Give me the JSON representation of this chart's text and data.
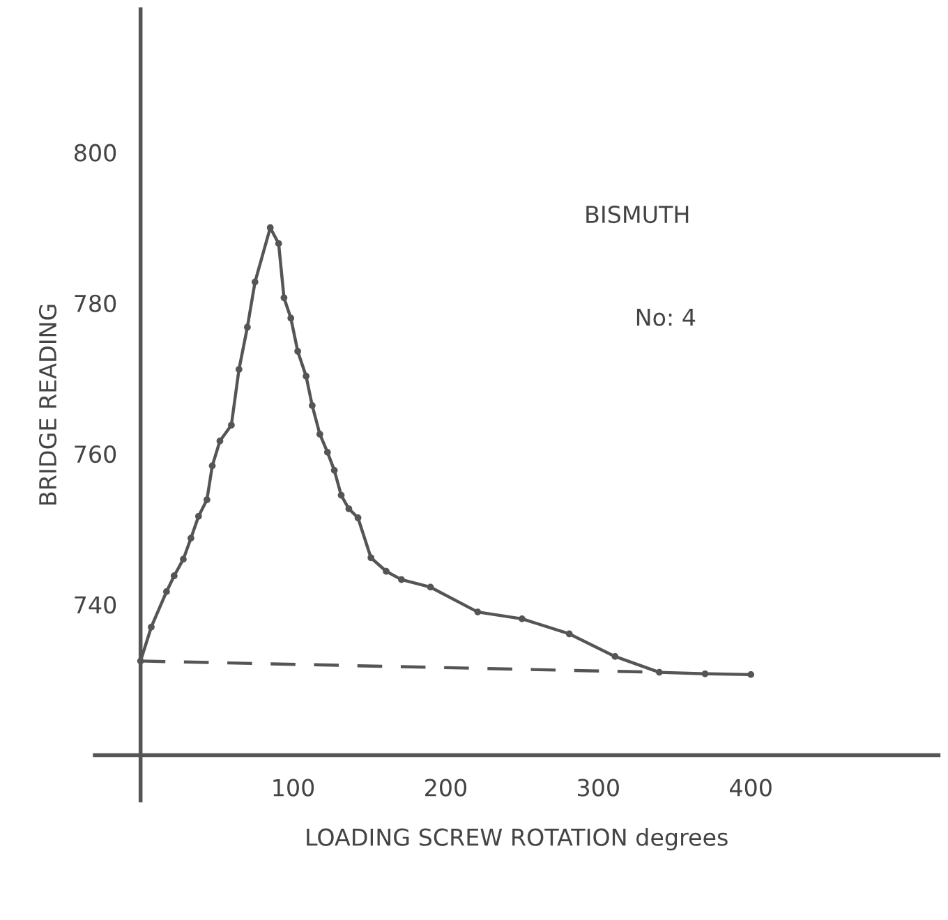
{
  "chart_data": {
    "type": "line",
    "xlabel": "LOADING SCREW ROTATION degrees",
    "ylabel": "BRIDGE READING",
    "annotations": [
      "BISMUTH",
      "No: 4"
    ],
    "xlim": [
      -30,
      523
    ],
    "ylim": [
      714,
      819
    ],
    "xticks": [
      100,
      200,
      300,
      400
    ],
    "yticks": [
      740,
      760,
      780,
      800
    ],
    "marker": "circle",
    "line_style": "solid",
    "grid": false,
    "legend": false,
    "series": [
      {
        "color": "#555555",
        "x": [
          0,
          7,
          17,
          22,
          28,
          33,
          38,
          43.5,
          47,
          52,
          59.5,
          64.5,
          70,
          75,
          85,
          90.5,
          94,
          98.5,
          103,
          108.5,
          112.5,
          117.5,
          122.5,
          127,
          131.5,
          136.5,
          142.5,
          151,
          161,
          171,
          190,
          221,
          250,
          281,
          311,
          340,
          370,
          400
        ],
        "values": [
          732.5,
          737,
          741.7,
          743.8,
          746,
          748.8,
          751.7,
          753.9,
          758.4,
          761.7,
          763.8,
          771.2,
          776.8,
          782.8,
          790,
          787.9,
          780.7,
          778,
          773.6,
          770.3,
          766.4,
          762.6,
          760.2,
          757.8,
          754.5,
          752.7,
          751.5,
          746.2,
          744.4,
          743.3,
          742.3,
          739,
          738.1,
          736.1,
          733.1,
          731,
          730.8,
          730.7
        ]
      },
      {
        "color": "#555555",
        "type": "line",
        "line_style": "dashed",
        "marker": "none",
        "x": [
          0,
          340
        ],
        "values": [
          732.5,
          731
        ]
      }
    ]
  }
}
